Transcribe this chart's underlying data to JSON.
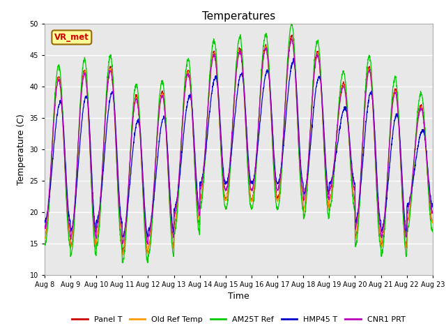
{
  "title": "Temperatures",
  "xlabel": "Time",
  "ylabel": "Temperature (C)",
  "ylim": [
    10,
    50
  ],
  "x_tick_labels": [
    "Aug 8",
    "Aug 9",
    "Aug 10",
    "Aug 11",
    "Aug 12",
    "Aug 13",
    "Aug 14",
    "Aug 15",
    "Aug 16",
    "Aug 17",
    "Aug 18",
    "Aug 19",
    "Aug 20",
    "Aug 21",
    "Aug 22",
    "Aug 23"
  ],
  "series_colors": [
    "#cc0000",
    "#ff9900",
    "#00cc00",
    "#0000cc",
    "#bb00bb"
  ],
  "series_names": [
    "Panel T",
    "Old Ref Temp",
    "AM25T Ref",
    "HMP45 T",
    "CNR1 PRT"
  ],
  "annotation_text": "VR_met",
  "annotation_color": "#cc0000",
  "annotation_bg": "#ffff99",
  "annotation_border": "#996600",
  "background_color": "#e8e8e8",
  "grid_color": "#ffffff",
  "title_fontsize": 11,
  "tick_fontsize": 7,
  "axis_label_fontsize": 9,
  "legend_fontsize": 8,
  "day_maxes": [
    41.5,
    42.5,
    43.0,
    38.5,
    39.0,
    42.5,
    45.5,
    46.0,
    46.5,
    48.0,
    45.5,
    40.5,
    43.0,
    39.5,
    37.0
  ],
  "day_mins": [
    16.0,
    14.5,
    16.0,
    13.5,
    14.5,
    18.0,
    22.0,
    22.0,
    22.0,
    22.0,
    20.5,
    22.0,
    16.0,
    14.5,
    18.5
  ]
}
